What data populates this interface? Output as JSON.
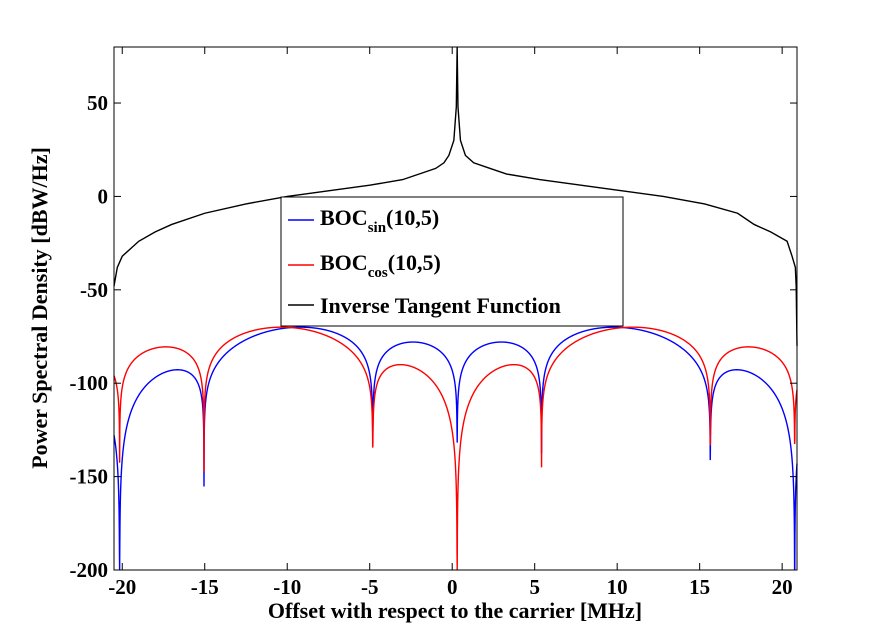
{
  "chart_data": {
    "type": "line",
    "xlabel": "Offset with respect to the carrier [MHz]",
    "ylabel": "Power Spectral Density [dBW/Hz]",
    "xlim": [
      -20.5,
      20.9
    ],
    "ylim": [
      -200,
      80
    ],
    "xticks": [
      -20,
      -15,
      -10,
      -5,
      0,
      5,
      10,
      15,
      20
    ],
    "yticks": [
      50,
      0,
      -50,
      -100,
      -150,
      -200
    ],
    "grid": false,
    "legend_position": "center",
    "legend": [
      {
        "base": "BOC",
        "sub": "sin",
        "suffix": "(10,5)",
        "color": "#0000ff"
      },
      {
        "base": "BOC",
        "sub": "cos",
        "suffix": "(10,5)",
        "color": "#ff0000"
      },
      {
        "base": "Inverse Tangent Function",
        "sub": "",
        "suffix": "",
        "color": "#000000"
      }
    ],
    "series": [
      {
        "name": "BOCsin(10,5)",
        "color": "#0000ff",
        "center": 0.3,
        "fs": 10.23,
        "fc": 5.115,
        "modulation": "sin"
      },
      {
        "name": "BOCcos(10,5)",
        "color": "#ff0000",
        "center": 0.3,
        "fs": 10.23,
        "fc": 5.115,
        "modulation": "cos"
      },
      {
        "name": "Inverse Tangent Function",
        "color": "#000000",
        "peak_x": 0.3,
        "x": [
          -20.5,
          -20.3,
          -20.0,
          -19.0,
          -18.0,
          -17.0,
          -15.0,
          -12.5,
          -10.0,
          -7.5,
          -5.0,
          -3.0,
          -2.0,
          -1.0,
          -0.5,
          -0.2,
          0.1,
          0.25,
          0.3,
          0.35,
          0.5,
          0.8,
          1.3,
          2.3,
          3.3,
          5.3,
          7.8,
          10.3,
          12.8,
          15.3,
          17.3,
          18.3,
          19.3,
          20.3,
          20.6,
          20.8,
          20.85,
          20.9
        ],
        "y": [
          -48,
          -38,
          -32,
          -24,
          -19,
          -15,
          -9,
          -4,
          0,
          3,
          6,
          9,
          12,
          15,
          18,
          22,
          30,
          48,
          80,
          48,
          30,
          22,
          18,
          15,
          12,
          9,
          6,
          3,
          0,
          -4,
          -9,
          -15,
          -19,
          -24,
          -32,
          -38,
          -48,
          -80
        ]
      }
    ]
  }
}
